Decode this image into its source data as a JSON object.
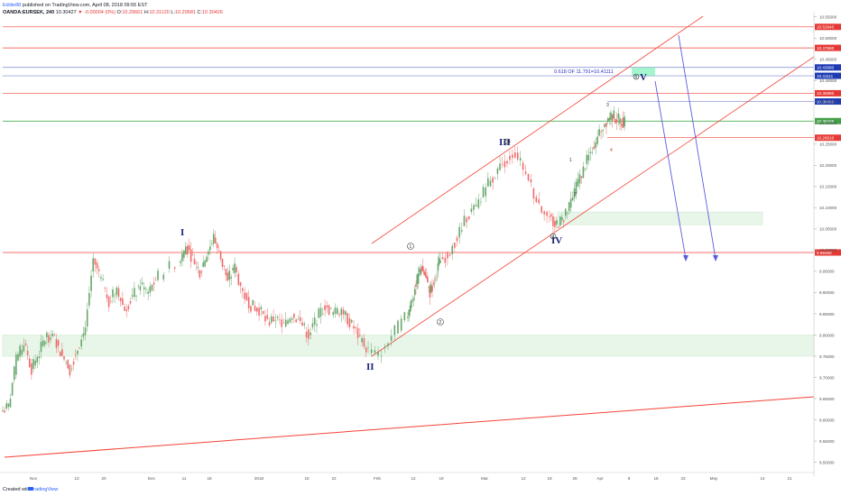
{
  "header": {
    "author": "Eddie88",
    "published": "published on TradingView.com, April 08, 2018 09:55 EST",
    "symbol": "OANDA:EURSEK, 240",
    "last_price": "10.30427",
    "change": "▼ -0.00004 (0%)",
    "o_label": "O:",
    "o_value": "10.29661",
    "h_label": "H:",
    "h_value": "10.31120",
    "l_label": "L:",
    "l_value": "10.29581",
    "c_label": "C:",
    "c_value": "10.30426"
  },
  "footer": {
    "created_with": "Created with",
    "brand": "TradingView"
  },
  "colors": {
    "candle_up": "#66a76a",
    "candle_down": "#ef6a6a",
    "level_red": "#f44336",
    "level_green": "#4caf50",
    "zone_fill": "#e8f5e9",
    "wave_label": "#1a237e",
    "arrow": "#5c5ce0",
    "axis_text": "#555555",
    "annotation_blue": "#3030c0",
    "price_tag_red": "#e53935",
    "price_tag_green": "#43a047",
    "price_tag_blue": "#1e3bb3"
  },
  "chart_data": {
    "type": "candlestick",
    "title": "",
    "x_ticks": [
      "Nov",
      "13",
      "20",
      "Dec",
      "11",
      "18",
      "2018",
      "15",
      "22",
      "Feb",
      "12",
      "19",
      "Mar",
      "12",
      "19",
      "26",
      "Apr",
      "9",
      "16",
      "23",
      "May",
      "14",
      "21"
    ],
    "y_ticks": [
      10.55,
      10.5,
      10.45,
      10.4,
      10.35,
      10.3,
      10.25,
      10.2,
      10.15,
      10.1,
      10.05,
      10.0,
      9.95,
      9.9,
      9.85,
      9.8,
      9.75,
      9.7,
      9.65,
      9.6,
      9.55,
      9.5
    ],
    "y_tick_labels": [
      "10.55000",
      "10.50000",
      "10.45000",
      "10.40000",
      "10.35000",
      "10.30000",
      "10.25000",
      "10.20000",
      "10.15000",
      "10.10000",
      "10.05000",
      "10.00000",
      "9.95000",
      "9.90000",
      "9.85000",
      "9.80000",
      "9.75000",
      "9.70000",
      "9.65000",
      "9.60000",
      "9.55000",
      "9.50000"
    ],
    "ylim": [
      9.48,
      10.56
    ],
    "price_series_close": [
      9.63,
      9.74,
      9.78,
      9.72,
      9.76,
      9.8,
      9.79,
      9.75,
      9.72,
      9.77,
      9.82,
      9.98,
      9.93,
      9.88,
      9.91,
      9.86,
      9.89,
      9.92,
      9.9,
      9.93,
      9.97,
      10.01,
      9.98,
      9.95,
      9.99,
      10.03,
      9.98,
      9.93,
      9.96,
      9.9,
      9.87,
      9.86,
      9.83,
      9.84,
      9.82,
      9.85,
      9.83,
      9.8,
      9.84,
      9.87,
      9.85,
      9.86,
      9.83,
      9.8,
      9.77,
      9.75,
      9.8,
      9.84,
      9.88,
      9.92,
      9.96,
      9.94,
      9.9,
      9.93,
      9.97,
      9.99,
      10.03,
      10.08,
      10.1,
      10.15,
      10.18,
      10.21,
      10.23,
      10.18,
      10.12,
      10.08,
      10.06,
      10.07,
      10.1,
      10.15,
      10.19,
      10.23,
      10.27,
      10.3,
      10.32,
      10.31,
      10.3,
      10.304
    ],
    "horizontal_levels": [
      {
        "value": 10.5264,
        "label": "10.52640",
        "color": "red"
      },
      {
        "value": 10.4769,
        "label": "10.47690",
        "color": "red"
      },
      {
        "value": 10.4308,
        "label": "10.43080",
        "color": "blue"
      },
      {
        "value": 10.4111,
        "label": "10.41111",
        "color": "blue"
      },
      {
        "value": 10.3699,
        "label": "10.36990",
        "color": "red"
      },
      {
        "value": 10.3505,
        "label": "10.35055",
        "color": "blue"
      },
      {
        "value": 10.3043,
        "label": "10.30426",
        "color": "green"
      },
      {
        "value": 10.2651,
        "label": "10.26510",
        "color": "red"
      },
      {
        "value": 9.9945,
        "label": "9.99450",
        "color": "red"
      }
    ],
    "zones": [
      {
        "from": 9.75,
        "to": 9.8,
        "label": ""
      },
      {
        "from": 10.06,
        "to": 10.09,
        "label": ""
      }
    ],
    "wave_labels": [
      "I",
      "II",
      "III",
      "IV",
      "V"
    ],
    "subwave_labels": [
      "1",
      "2",
      "3",
      "4",
      "5"
    ],
    "minor_labels": [
      "1",
      "2",
      "3",
      "4"
    ],
    "annotation": "0.618 OF 11.791=10.41111",
    "grid": false
  }
}
